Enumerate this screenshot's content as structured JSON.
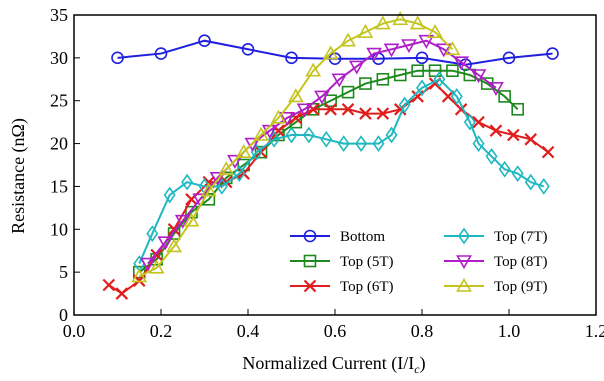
{
  "chart_data": {
    "type": "line",
    "title": "",
    "xlabel_main": "Normalized Current (I/I",
    "xlabel_sub": "c",
    "xlabel_close": ")",
    "ylabel": "Resistance (nΩ)",
    "xlim": [
      0.0,
      1.2
    ],
    "ylim": [
      0,
      35
    ],
    "xticks": [
      "0.0",
      "0.2",
      "0.4",
      "0.6",
      "0.8",
      "1.0",
      "1.2"
    ],
    "xtick_values": [
      0.0,
      0.2,
      0.4,
      0.6,
      0.8,
      1.0,
      1.2
    ],
    "yticks": [
      "0",
      "5",
      "10",
      "15",
      "20",
      "25",
      "30",
      "35"
    ],
    "ytick_values": [
      0,
      5,
      10,
      15,
      20,
      25,
      30,
      35
    ],
    "grid": false,
    "legend_position": "bottom-right",
    "series": [
      {
        "name": "Bottom",
        "color": "#1f1fe0",
        "marker": "circle",
        "x": [
          0.1,
          0.2,
          0.3,
          0.4,
          0.5,
          0.6,
          0.7,
          0.8,
          0.9,
          1.0,
          1.1
        ],
        "y": [
          30.0,
          30.5,
          32.0,
          31.0,
          30.0,
          29.9,
          29.9,
          30.0,
          29.2,
          30.0,
          30.5
        ]
      },
      {
        "name": "Top (5T)",
        "color": "#1e8a1e",
        "marker": "square",
        "x": [
          0.15,
          0.19,
          0.23,
          0.27,
          0.31,
          0.35,
          0.39,
          0.43,
          0.47,
          0.51,
          0.55,
          0.59,
          0.63,
          0.67,
          0.71,
          0.75,
          0.79,
          0.83,
          0.87,
          0.91,
          0.95,
          0.99,
          1.02
        ],
        "y": [
          5.0,
          6.5,
          9.5,
          12.0,
          13.5,
          16.0,
          17.5,
          19.0,
          21.0,
          22.5,
          24.0,
          25.0,
          26.0,
          27.0,
          27.5,
          28.0,
          28.5,
          28.5,
          28.5,
          28.0,
          27.0,
          25.5,
          24.0
        ]
      },
      {
        "name": "Top (6T)",
        "color": "#e01e1e",
        "marker": "x",
        "x": [
          0.08,
          0.11,
          0.15,
          0.19,
          0.23,
          0.27,
          0.31,
          0.35,
          0.39,
          0.43,
          0.47,
          0.51,
          0.55,
          0.59,
          0.63,
          0.67,
          0.71,
          0.75,
          0.79,
          0.83,
          0.86,
          0.89,
          0.93,
          0.97,
          1.01,
          1.05,
          1.09
        ],
        "y": [
          3.5,
          2.5,
          4.0,
          7.0,
          10.0,
          13.5,
          15.5,
          15.5,
          16.5,
          19.0,
          21.5,
          23.0,
          24.0,
          24.0,
          24.0,
          23.5,
          23.5,
          24.0,
          25.5,
          27.0,
          25.5,
          24.0,
          22.5,
          21.5,
          21.0,
          20.5,
          19.0
        ]
      },
      {
        "name": "Top (7T)",
        "color": "#1eb8c0",
        "marker": "diamond",
        "x": [
          0.15,
          0.18,
          0.22,
          0.26,
          0.3,
          0.34,
          0.38,
          0.42,
          0.46,
          0.5,
          0.54,
          0.58,
          0.62,
          0.66,
          0.7,
          0.73,
          0.76,
          0.8,
          0.84,
          0.88,
          0.91,
          0.93,
          0.96,
          0.99,
          1.02,
          1.05,
          1.08
        ],
        "y": [
          6.0,
          9.5,
          14.0,
          15.5,
          15.0,
          15.0,
          16.5,
          19.0,
          20.5,
          21.0,
          21.0,
          20.5,
          20.0,
          20.0,
          20.0,
          21.0,
          24.5,
          26.5,
          27.5,
          25.5,
          22.5,
          20.0,
          18.5,
          17.0,
          16.5,
          15.5,
          15.0
        ]
      },
      {
        "name": "Top (8T)",
        "color": "#b01ec8",
        "marker": "triangle-down",
        "x": [
          0.17,
          0.21,
          0.25,
          0.29,
          0.33,
          0.37,
          0.41,
          0.45,
          0.49,
          0.53,
          0.57,
          0.61,
          0.65,
          0.69,
          0.73,
          0.77,
          0.81,
          0.85,
          0.89,
          0.93,
          0.97
        ],
        "y": [
          6.0,
          8.5,
          11.0,
          13.5,
          16.0,
          18.0,
          20.0,
          21.5,
          23.0,
          24.0,
          25.5,
          27.5,
          29.0,
          30.5,
          31.0,
          31.5,
          32.0,
          31.0,
          29.5,
          28.0,
          26.5
        ]
      },
      {
        "name": "Top (9T)",
        "color": "#c4c41e",
        "marker": "triangle-up",
        "x": [
          0.15,
          0.19,
          0.23,
          0.27,
          0.31,
          0.35,
          0.39,
          0.43,
          0.47,
          0.51,
          0.55,
          0.59,
          0.63,
          0.67,
          0.71,
          0.75,
          0.79,
          0.83,
          0.87
        ],
        "y": [
          4.5,
          5.5,
          8.0,
          11.0,
          14.5,
          17.0,
          19.0,
          21.0,
          23.0,
          25.5,
          28.5,
          30.5,
          32.0,
          33.0,
          34.0,
          34.5,
          34.0,
          33.0,
          31.0
        ]
      }
    ]
  }
}
